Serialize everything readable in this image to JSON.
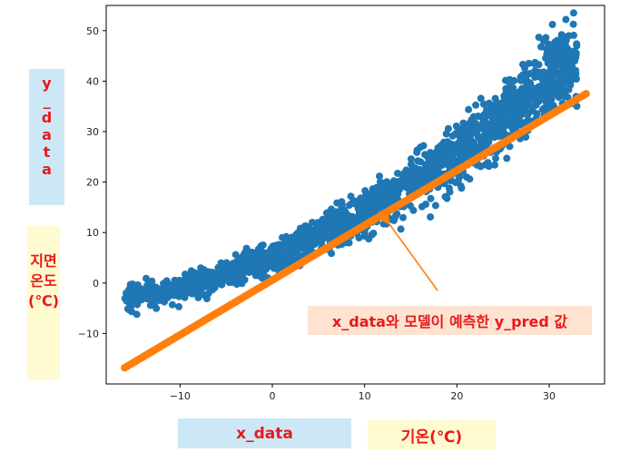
{
  "chart_data": {
    "type": "scatter",
    "xlim": [
      -18,
      36
    ],
    "ylim": [
      -20,
      55
    ],
    "x_ticks": [
      -10,
      0,
      10,
      20,
      30
    ],
    "y_ticks": [
      -10,
      0,
      10,
      20,
      30,
      40,
      50
    ],
    "x_tick_labels": [
      "−10",
      "0",
      "10",
      "20",
      "30"
    ],
    "y_tick_labels": [
      "−10",
      "0",
      "10",
      "20",
      "30",
      "40",
      "50"
    ],
    "grid": false,
    "series": [
      {
        "kind": "scatter",
        "color": "#1f77b4",
        "x_range": [
          -16,
          33
        ],
        "trend_points": [
          [
            -16,
            -3
          ],
          [
            -10,
            -1
          ],
          [
            0,
            5
          ],
          [
            10,
            14
          ],
          [
            20,
            25
          ],
          [
            27,
            36
          ],
          [
            32,
            44
          ]
        ]
      },
      {
        "kind": "prediction_line",
        "color": "#ff7f0e",
        "x": [
          -16,
          34
        ],
        "y": [
          -16.8,
          37.5
        ]
      }
    ],
    "annotation": {
      "text": "x_data와 모델이 예측한 y_pred 값",
      "point": [
        12,
        13
      ],
      "arrow_color": "#ff7f0e"
    }
  },
  "labels": {
    "ylabel": "y_data",
    "ylabel_kr": "지면온도(℃)",
    "xlabel": "x_data",
    "xlabel_kr": "기온(℃)"
  }
}
